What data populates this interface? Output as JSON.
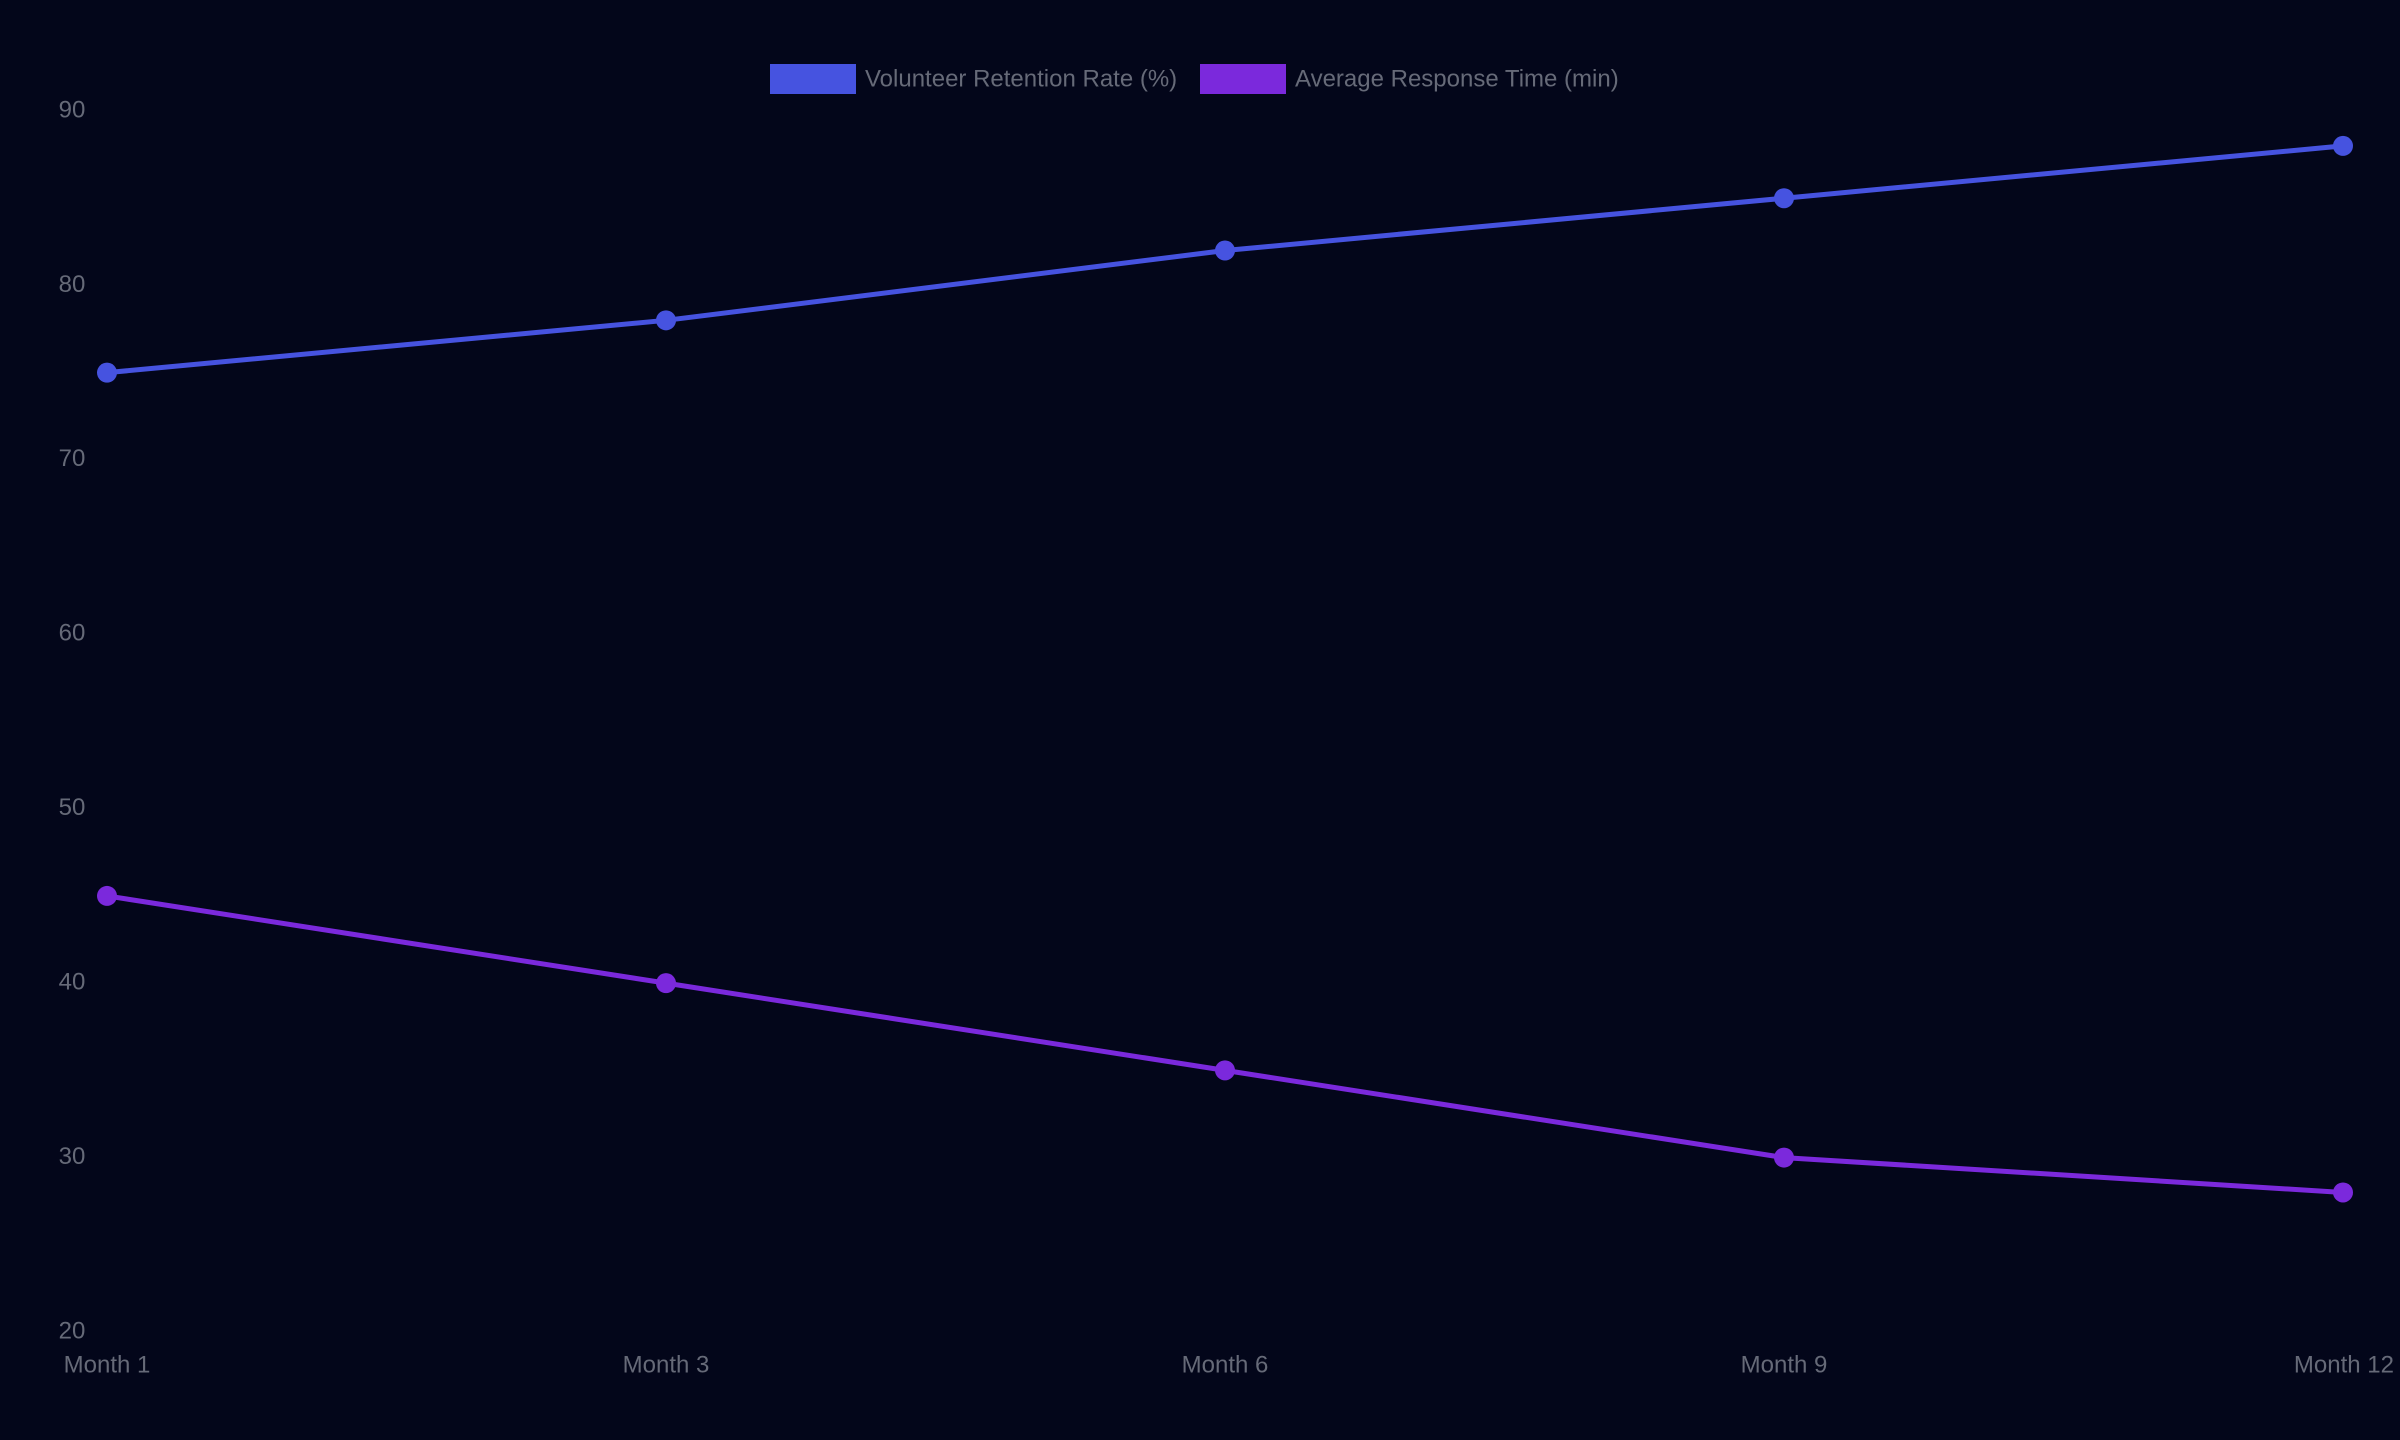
{
  "chart_data": {
    "type": "line",
    "categories": [
      "Month 1",
      "Month 3",
      "Month 6",
      "Month 9",
      "Month 12"
    ],
    "series": [
      {
        "name": "Volunteer Retention Rate (%)",
        "color": "#4653e0",
        "values": [
          75,
          78,
          82,
          85,
          88
        ]
      },
      {
        "name": "Average Response Time (min)",
        "color": "#7b29dc",
        "values": [
          45,
          40,
          35,
          30,
          28
        ]
      }
    ],
    "yticks": [
      20,
      30,
      40,
      50,
      60,
      70,
      80,
      90
    ],
    "ylim": [
      20,
      90
    ],
    "grid": false,
    "legend_position": "top-center",
    "background": "#03061a",
    "text_color": "#666a78"
  }
}
